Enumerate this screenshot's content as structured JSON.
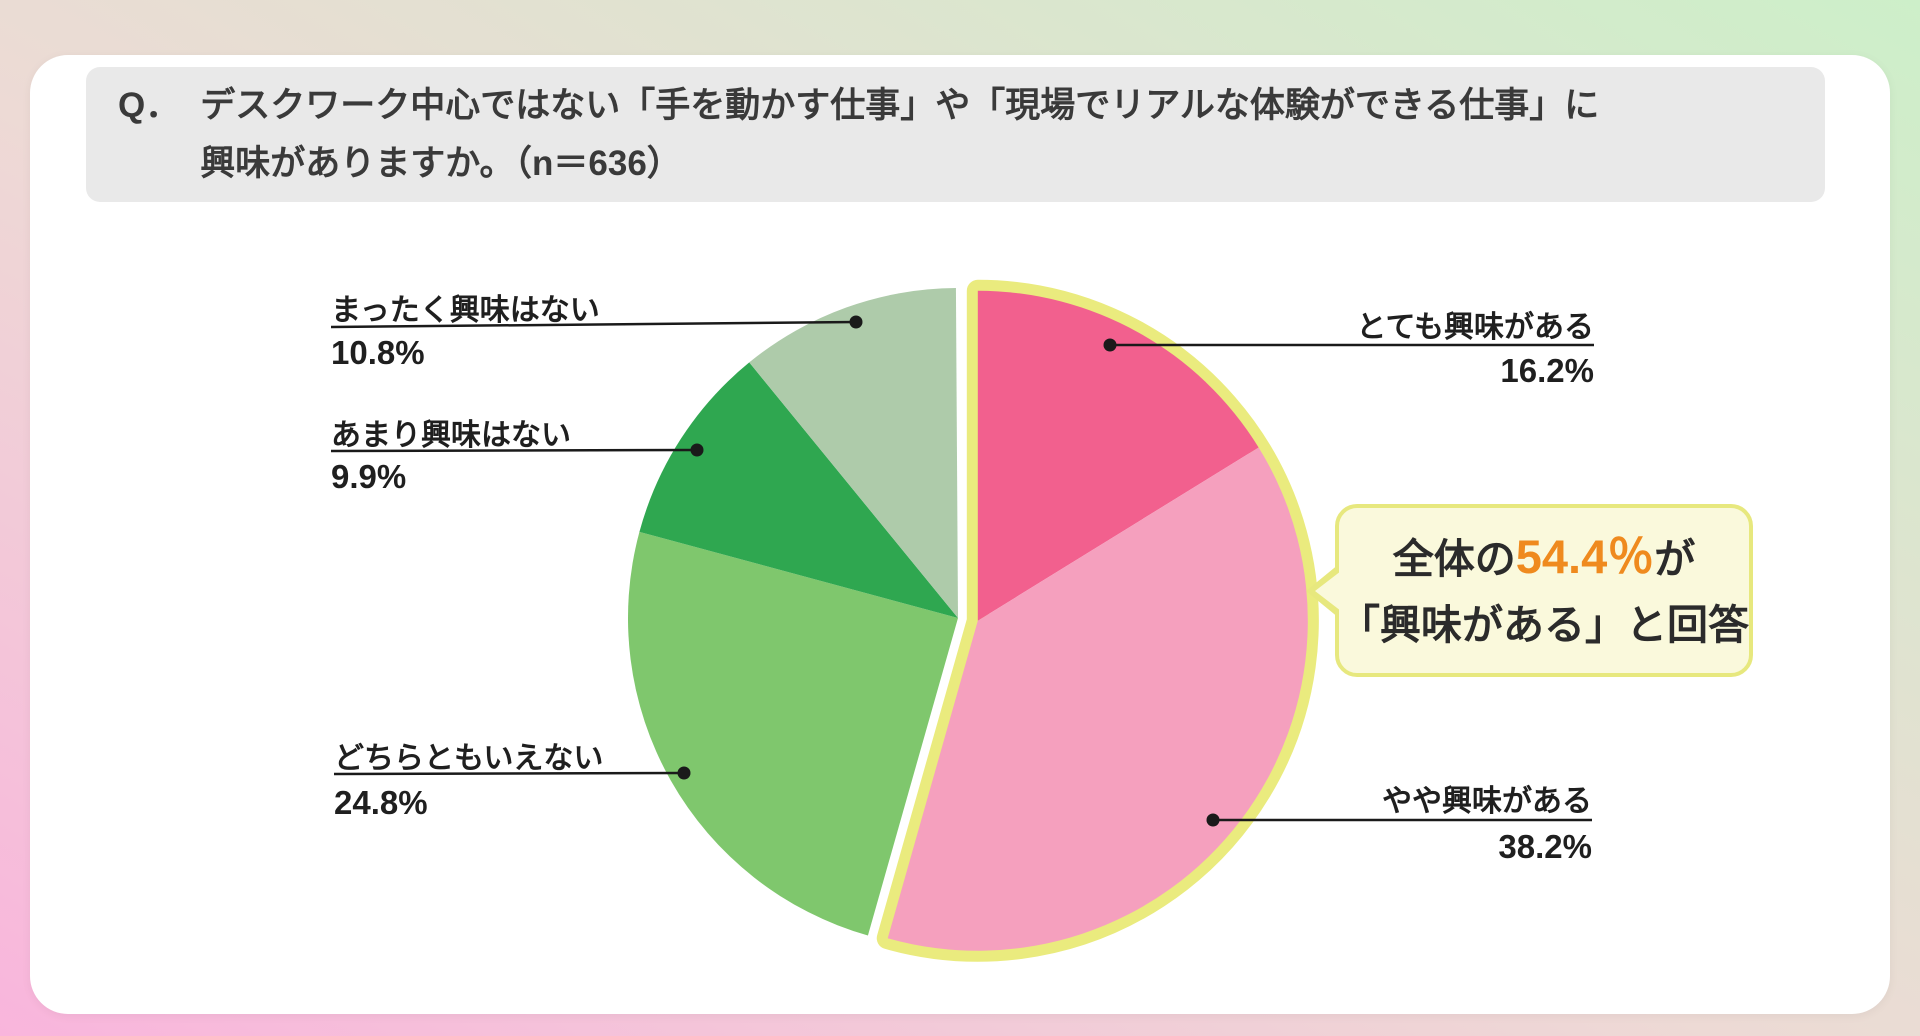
{
  "question": {
    "prefix": "Q．",
    "line1": "デスクワーク中心ではない「手を動かす仕事」や「現場でリアルな体験ができる仕事」に",
    "line2": "興味がありますか。（n＝636）"
  },
  "chart_data": {
    "type": "pie",
    "title": "デスクワーク中心ではない「手を動かす仕事」や「現場でリアルな体験ができる仕事」に興味がありますか。",
    "n_label": "n＝636",
    "start_angle_deg": 0,
    "direction": "clockwise",
    "segments": [
      {
        "label": "とても興味がある",
        "value_pct": 16.2,
        "pct_label": "16.2%",
        "color": "#F2608E",
        "highlighted": true
      },
      {
        "label": "やや興味がある",
        "value_pct": 38.2,
        "pct_label": "38.2%",
        "color": "#F5A0BE",
        "highlighted": true
      },
      {
        "label": "どちらともいえない",
        "value_pct": 24.8,
        "pct_label": "24.8%",
        "color": "#7FC76D",
        "highlighted": false
      },
      {
        "label": "あまり興味はない",
        "value_pct": 9.9,
        "pct_label": "9.9%",
        "color": "#2FA750",
        "highlighted": false
      },
      {
        "label": "まったく興味はない",
        "value_pct": 10.8,
        "pct_label": "10.8%",
        "color": "#AECBAA",
        "highlighted": false
      }
    ],
    "highlight_outline_color": "#EAEB7E",
    "leader_color": "#1A1A1A",
    "annotation": {
      "text_before": "全体の",
      "highlight_value": "54.4％",
      "text_after": "が",
      "line2": "「興味がある」と回答",
      "highlight_color": "#EF8A1E",
      "total_pct": 54.4
    }
  }
}
